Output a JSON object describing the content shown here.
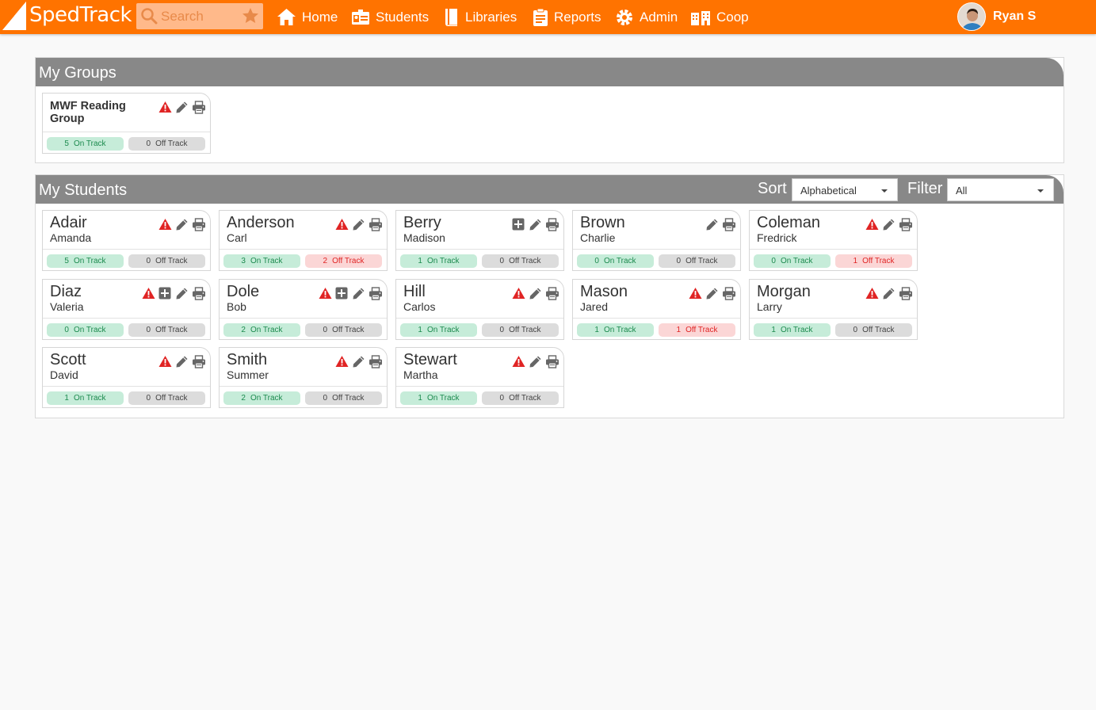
{
  "app": {
    "brand": "SpedTrack",
    "colors": {
      "brand": "#ff7300",
      "panel_header": "#888888",
      "on_track": "#c6ecd9",
      "off_track_alert": "#fbd6d6",
      "warning": "#e02424"
    }
  },
  "search": {
    "placeholder": "Search",
    "icon": "search-icon",
    "favorite_icon": "star-icon"
  },
  "nav": [
    {
      "label": "Home",
      "icon": "home-icon"
    },
    {
      "label": "Students",
      "icon": "id-card-icon"
    },
    {
      "label": "Libraries",
      "icon": "book-icon"
    },
    {
      "label": "Reports",
      "icon": "clipboard-icon"
    },
    {
      "label": "Admin",
      "icon": "gear-icon"
    },
    {
      "label": "Coop",
      "icon": "building-icon"
    }
  ],
  "user": {
    "name": "Ryan S"
  },
  "groups_panel": {
    "title": "My Groups",
    "groups": [
      {
        "name": "MWF Reading Group",
        "on_track": "5",
        "on_track_label": "On Track",
        "off_track": "0",
        "off_track_label": "Off Track",
        "icons": [
          "warning-icon",
          "edit-icon",
          "print-icon"
        ]
      }
    ]
  },
  "students_panel": {
    "title": "My Students",
    "sort_label": "Sort",
    "sort_value": "Alphabetical",
    "filter_label": "Filter",
    "filter_value": "All",
    "students": [
      {
        "last": "Adair",
        "first": "Amanda",
        "on": "5",
        "off": "0",
        "on_label": "On Track",
        "off_label": "Off Track",
        "icons": [
          "warning-icon",
          "edit-icon",
          "print-icon"
        ]
      },
      {
        "last": "Anderson",
        "first": "Carl",
        "on": "3",
        "off": "2",
        "on_label": "On Track",
        "off_label": "Off Track",
        "icons": [
          "warning-icon",
          "edit-icon",
          "print-icon"
        ]
      },
      {
        "last": "Berry",
        "first": "Madison",
        "on": "1",
        "off": "0",
        "on_label": "On Track",
        "off_label": "Off Track",
        "icons": [
          "plus-icon",
          "edit-icon",
          "print-icon"
        ]
      },
      {
        "last": "Brown",
        "first": "Charlie",
        "on": "0",
        "off": "0",
        "on_label": "On Track",
        "off_label": "Off Track",
        "icons": [
          "edit-icon",
          "print-icon"
        ]
      },
      {
        "last": "Coleman",
        "first": "Fredrick",
        "on": "0",
        "off": "1",
        "on_label": "On Track",
        "off_label": "Off Track",
        "icons": [
          "warning-icon",
          "edit-icon",
          "print-icon"
        ]
      },
      {
        "last": "Diaz",
        "first": "Valeria",
        "on": "0",
        "off": "0",
        "on_label": "On Track",
        "off_label": "Off Track",
        "icons": [
          "warning-icon",
          "plus-icon",
          "edit-icon",
          "print-icon"
        ]
      },
      {
        "last": "Dole",
        "first": "Bob",
        "on": "2",
        "off": "0",
        "on_label": "On Track",
        "off_label": "Off Track",
        "icons": [
          "warning-icon",
          "plus-icon",
          "edit-icon",
          "print-icon"
        ]
      },
      {
        "last": "Hill",
        "first": "Carlos",
        "on": "1",
        "off": "0",
        "on_label": "On Track",
        "off_label": "Off Track",
        "icons": [
          "warning-icon",
          "edit-icon",
          "print-icon"
        ]
      },
      {
        "last": "Mason",
        "first": "Jared",
        "on": "1",
        "off": "1",
        "on_label": "On Track",
        "off_label": "Off Track",
        "icons": [
          "warning-icon",
          "edit-icon",
          "print-icon"
        ]
      },
      {
        "last": "Morgan",
        "first": "Larry",
        "on": "1",
        "off": "0",
        "on_label": "On Track",
        "off_label": "Off Track",
        "icons": [
          "warning-icon",
          "edit-icon",
          "print-icon"
        ]
      },
      {
        "last": "Scott",
        "first": "David",
        "on": "1",
        "off": "0",
        "on_label": "On Track",
        "off_label": "Off Track",
        "icons": [
          "warning-icon",
          "edit-icon",
          "print-icon"
        ]
      },
      {
        "last": "Smith",
        "first": "Summer",
        "on": "2",
        "off": "0",
        "on_label": "On Track",
        "off_label": "Off Track",
        "icons": [
          "warning-icon",
          "edit-icon",
          "print-icon"
        ]
      },
      {
        "last": "Stewart",
        "first": "Martha",
        "on": "1",
        "off": "0",
        "on_label": "On Track",
        "off_label": "Off Track",
        "icons": [
          "warning-icon",
          "edit-icon",
          "print-icon"
        ]
      }
    ]
  }
}
